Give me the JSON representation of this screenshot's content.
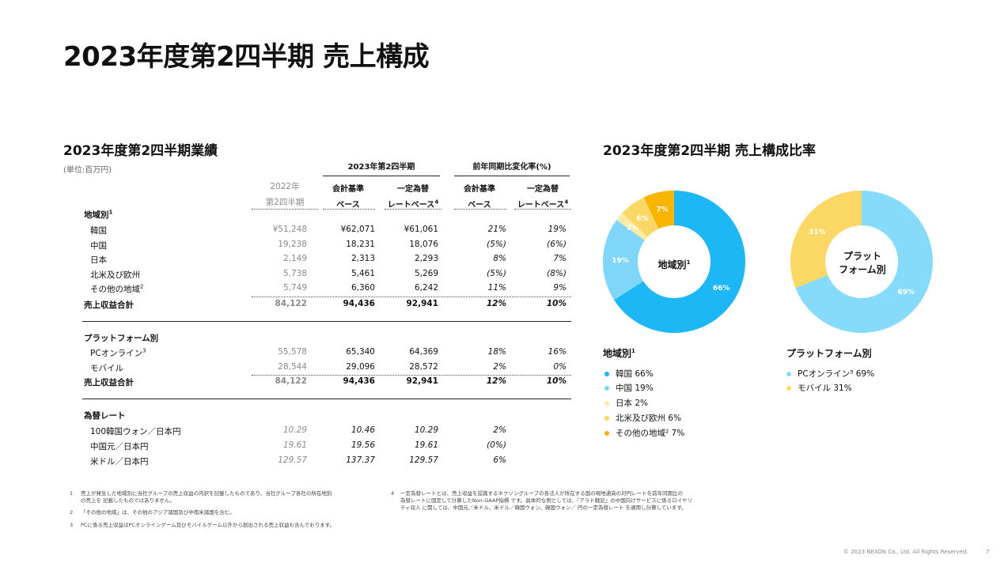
{
  "title": "2023年度第2四半期 売上構成",
  "table": {
    "heading": "2023年度第2四半期業績",
    "unit": "(単位:百万円)",
    "col_prev_year": "2022年",
    "col_prev_q": "第2四半期",
    "group_current": "2023年第2四半期",
    "group_change": "前年同期比変化率(%)",
    "col_acct1": "会計基準",
    "col_acct2": "ベース",
    "col_fx1": "一定為替",
    "col_fx2": "レートベース",
    "col_fx_sup": "4",
    "region_label": "地域別",
    "region_sup": "1",
    "region_rows": [
      {
        "name": "韓国",
        "prev": "¥51,248",
        "acct": "¥62,071",
        "fx": "¥61,061",
        "chg_acct": "21%",
        "chg_fx": "19%"
      },
      {
        "name": "中国",
        "prev": "19,238",
        "acct": "18,231",
        "fx": "18,076",
        "chg_acct": "(5%)",
        "chg_fx": "(6%)"
      },
      {
        "name": "日本",
        "prev": "2,149",
        "acct": "2,313",
        "fx": "2,293",
        "chg_acct": "8%",
        "chg_fx": "7%"
      },
      {
        "name": "北米及び欧州",
        "prev": "5,738",
        "acct": "5,461",
        "fx": "5,269",
        "chg_acct": "(5%)",
        "chg_fx": "(8%)"
      },
      {
        "name": "その他の地域",
        "sup": "2",
        "prev": "5,749",
        "acct": "6,360",
        "fx": "6,242",
        "chg_acct": "11%",
        "chg_fx": "9%"
      }
    ],
    "total_label": "売上収益合計",
    "region_total": {
      "prev": "84,122",
      "acct": "94,436",
      "fx": "92,941",
      "chg_acct": "12%",
      "chg_fx": "10%"
    },
    "platform_label": "プラットフォーム別",
    "platform_rows": [
      {
        "name": "PCオンライン",
        "sup": "3",
        "prev": "55,578",
        "acct": "65,340",
        "fx": "64,369",
        "chg_acct": "18%",
        "chg_fx": "16%"
      },
      {
        "name": "モバイル",
        "prev": "28,544",
        "acct": "29,096",
        "fx": "28,572",
        "chg_acct": "2%",
        "chg_fx": "0%"
      }
    ],
    "platform_total": {
      "prev": "84,122",
      "acct": "94,436",
      "fx": "92,941",
      "chg_acct": "12%",
      "chg_fx": "10%"
    },
    "fx_label": "為替レート",
    "fx_rows": [
      {
        "name": "100韓国ウォン／日本円",
        "prev": "10.29",
        "acct": "10.46",
        "fx": "10.29",
        "chg_acct": "2%"
      },
      {
        "name": "中国元／日本円",
        "prev": "19.61",
        "acct": "19.56",
        "fx": "19.61",
        "chg_acct": "(0%)"
      },
      {
        "name": "米ドル／日本円",
        "prev": "129.57",
        "acct": "137.37",
        "fx": "129.57",
        "chg_acct": "6%"
      }
    ]
  },
  "charts_heading": "2023年度第2四半期 売上構成比率",
  "chart_data": [
    {
      "type": "pie",
      "title": "地域別",
      "title_sup": "1",
      "categories": [
        "韓国",
        "中国",
        "日本",
        "北米及び欧州",
        "その他の地域"
      ],
      "values": [
        66,
        19,
        2,
        6,
        7
      ],
      "labels": [
        "66%",
        "19%",
        "2%",
        "6%",
        "7%"
      ],
      "colors": [
        "#1EB7F5",
        "#7FD6F8",
        "#FCEBA6",
        "#FBD766",
        "#F7B500"
      ]
    },
    {
      "type": "pie",
      "title": "プラットフォーム別",
      "categories": [
        "PCオンライン",
        "モバイル"
      ],
      "values": [
        69,
        31
      ],
      "labels": [
        "69%",
        "31%"
      ],
      "colors": [
        "#86DBFA",
        "#FBD766"
      ]
    }
  ],
  "center_labels": {
    "region": "地域別",
    "region_sup": "1",
    "platform_line1": "プラット",
    "platform_line2": "フォーム別"
  },
  "legend_region": {
    "title": "地域別",
    "sup": "1",
    "items": [
      {
        "text": "韓国 66%",
        "color": "#1EB7F5"
      },
      {
        "text": "中国 19%",
        "color": "#7FD6F8"
      },
      {
        "text": "日本 2%",
        "color": "#FCEBA6"
      },
      {
        "text": "北米及び欧州 6%",
        "color": "#FBD766"
      },
      {
        "text": "その他の地域² 7%",
        "color": "#F7B500"
      }
    ]
  },
  "legend_platform": {
    "title": "プラットフォーム別",
    "items": [
      {
        "text": "PCオンライン³ 69%",
        "color": "#86DBFA"
      },
      {
        "text": "モバイル 31%",
        "color": "#FBD766"
      }
    ]
  },
  "footnotes": {
    "n1_num": "1",
    "n1_a": "売上が発生した地域別に当社グループの売上収益の内訳を記載したものであり、当社グループ各社の所在地別",
    "n1_b": "の売上を 記載したものではありません。",
    "n2_num": "2",
    "n2": "「その他の地域」は、その他のアジア諸国及び中南米諸国を含む。",
    "n3_num": "3",
    "n3": "PCに係る売上収益はPCオンラインゲーム及びモバイルゲーム以外から創出される売上収益も含んでおります。",
    "n4_num": "4",
    "n4_a": "一定為替レートとは、売上収益を認識するネクソングループの各法人が所在する国の現地通貨の対円レートを前年同期比の",
    "n4_b": "為替レートに固定して計算したNon-GAAP指標 です。具体的な例としては、『アラド戦記』の中国向けサービスに係るロイヤリ",
    "n4_c": "ティ収入 に関しては、中国元／米ドル、米ドル／韓国ウォン、韓国ウォン／ 円の一定為替レート を適用し計算しています。"
  },
  "copyright": "© 2023 NEXON Co., Ltd. All Rights Reserved.",
  "page_number": "7"
}
